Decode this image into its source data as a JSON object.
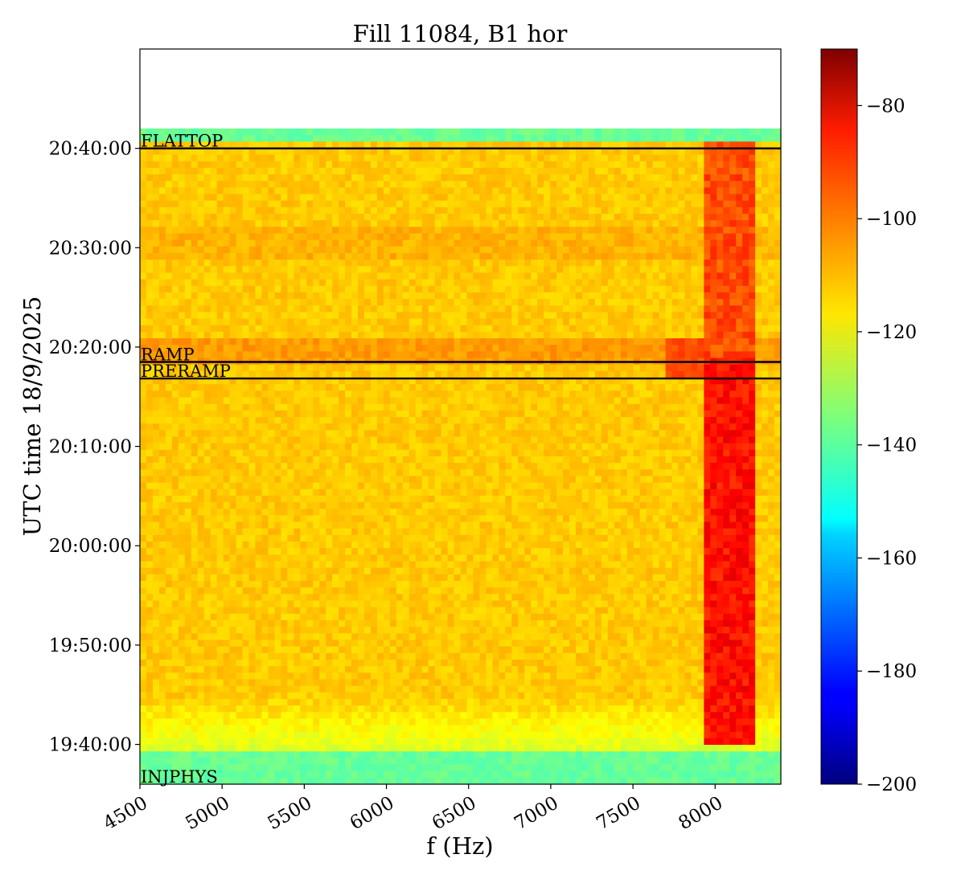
{
  "chart_data": {
    "type": "heatmap",
    "title": "Fill 11084, B1 hor",
    "xlabel": "f (Hz)",
    "ylabel": "UTC time 18/9/2025",
    "xlim": [
      4500,
      8400
    ],
    "ylim": [
      "19:36:00",
      "20:50:00"
    ],
    "data_time_range": [
      "19:36:00",
      "20:42:00"
    ],
    "x_ticks": [
      "4500",
      "5000",
      "5500",
      "6000",
      "6500",
      "7000",
      "7500",
      "8000"
    ],
    "y_ticks": [
      "19:40:00",
      "19:50:00",
      "20:00:00",
      "20:10:00",
      "20:20:00",
      "20:30:00",
      "20:40:00"
    ],
    "colorbar": {
      "colormap": "jet",
      "range": [
        -200,
        -70
      ],
      "ticks": [
        "−80",
        "−100",
        "−120",
        "−140",
        "−160",
        "−180",
        "−200"
      ]
    },
    "annotations": [
      {
        "label": "FLATTOP",
        "time": "20:40:00"
      },
      {
        "label": "RAMP",
        "time": "20:18:30"
      },
      {
        "label": "PRERAMP",
        "time": "20:16:50"
      },
      {
        "label": "INJPHYS",
        "time": "19:36:00"
      }
    ],
    "spectrum_levels": {
      "background": -112,
      "quiet_edges": -138,
      "peak_region_hz": [
        7950,
        8250
      ],
      "peak_level": -88
    },
    "grid": false
  }
}
